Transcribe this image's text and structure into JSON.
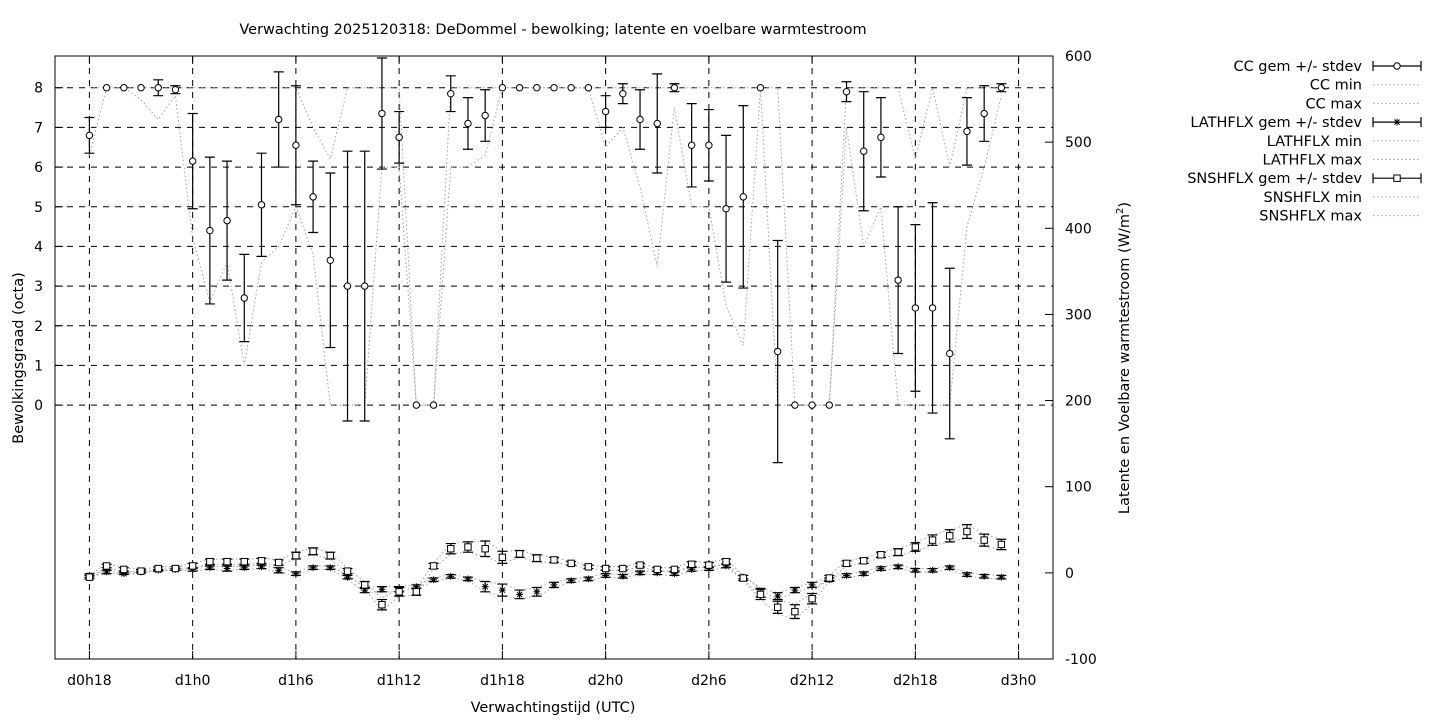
{
  "chart_data": {
    "type": "line",
    "title": "Verwachting 2025120318: DeDommel - bewolking; latente en voelbare warmtestroom",
    "xlabel": "Verwachtingstijd (UTC)",
    "ylabel": "Bewolkingsgraad (octa)",
    "y2label_main": "Latente en Voelbare warmtestroom (W/m",
    "y2label_sup": "2",
    "y2label_end": ")",
    "x_hours": [
      18,
      19,
      20,
      21,
      22,
      23,
      24,
      25,
      26,
      27,
      28,
      29,
      30,
      31,
      32,
      33,
      34,
      35,
      36,
      37,
      38,
      39,
      40,
      41,
      42,
      43,
      44,
      45,
      46,
      47,
      48,
      49,
      50,
      51,
      52,
      53,
      54,
      55,
      56,
      57,
      58,
      59,
      60,
      61,
      62,
      63,
      64,
      65,
      66,
      67,
      68,
      69,
      70,
      71,
      72
    ],
    "xlim": [
      16,
      74
    ],
    "x_ticks": [
      {
        "hour": 18,
        "label": "d0h18"
      },
      {
        "hour": 24,
        "label": "d1h0"
      },
      {
        "hour": 30,
        "label": "d1h6"
      },
      {
        "hour": 36,
        "label": "d1h12"
      },
      {
        "hour": 42,
        "label": "d1h18"
      },
      {
        "hour": 48,
        "label": "d2h0"
      },
      {
        "hour": 54,
        "label": "d2h6"
      },
      {
        "hour": 60,
        "label": "d2h12"
      },
      {
        "hour": 66,
        "label": "d2h18"
      },
      {
        "hour": 72,
        "label": "d3h0"
      }
    ],
    "y_ticks": [
      0,
      1,
      2,
      3,
      4,
      5,
      6,
      7,
      8
    ],
    "y_range_mapped": [
      -6.4,
      8.8
    ],
    "y2_ticks": [
      -100,
      0,
      100,
      200,
      300,
      400,
      500,
      600
    ],
    "y2_range": [
      -100,
      600
    ],
    "grid": true,
    "legend_position": "right-outside",
    "legend": [
      {
        "label": "CC gem +/- stdev",
        "style": "errbar-circle"
      },
      {
        "label": "CC min",
        "style": "dotted"
      },
      {
        "label": "CC max",
        "style": "dotted"
      },
      {
        "label": "LATHFLX gem +/- stdev",
        "style": "errbar-star"
      },
      {
        "label": "LATHFLX min",
        "style": "dotted-dark"
      },
      {
        "label": "LATHFLX max",
        "style": "dotted"
      },
      {
        "label": "SNSHFLX gem +/- stdev",
        "style": "errbar-square"
      },
      {
        "label": "SNSHFLX min",
        "style": "dotted"
      },
      {
        "label": "SNSHFLX max",
        "style": "dotted"
      }
    ],
    "series": [
      {
        "name": "CC gem +/- stdev",
        "axis": "y1",
        "values": [
          6.8,
          8.0,
          8.0,
          8.0,
          8.0,
          7.95,
          6.15,
          4.4,
          4.65,
          2.7,
          5.05,
          7.2,
          6.55,
          5.25,
          3.65,
          3.0,
          3.0,
          7.35,
          6.75,
          0.0,
          0.0,
          7.85,
          7.1,
          7.3,
          8.0,
          8.0,
          8.0,
          8.0,
          8.0,
          8.0,
          7.4,
          7.85,
          7.2,
          7.1,
          8.0,
          6.55,
          6.55,
          4.95,
          5.25,
          8.0,
          1.35,
          0.0,
          0.0,
          0.0,
          7.9,
          6.4,
          6.75,
          3.15,
          2.45,
          2.45,
          1.3,
          6.9,
          7.35,
          8.0,
          null
        ],
        "stdev": [
          0.45,
          0,
          0,
          0,
          0.2,
          0.1,
          1.2,
          1.85,
          1.5,
          1.1,
          1.3,
          1.2,
          1.5,
          0.9,
          2.2,
          3.4,
          3.4,
          1.4,
          0.65,
          0,
          0,
          0.45,
          0.65,
          0.65,
          0,
          0,
          0,
          0,
          0,
          0,
          0.4,
          0.25,
          0.75,
          1.25,
          0.1,
          1.05,
          0.9,
          1.85,
          2.3,
          0,
          2.8,
          0,
          0,
          0,
          0.25,
          1.5,
          1.0,
          1.85,
          2.1,
          2.65,
          2.15,
          0.85,
          0.7,
          0.1,
          null
        ]
      },
      {
        "name": "CC min",
        "axis": "y1",
        "values": [
          6.3,
          8.0,
          8.0,
          7.7,
          7.2,
          7.8,
          4.2,
          2.6,
          3.6,
          1.0,
          3.6,
          4.0,
          5.0,
          3.8,
          0.0,
          0.0,
          0.0,
          6.0,
          6.0,
          0.0,
          0.0,
          6.0,
          6.0,
          6.3,
          8.0,
          8.0,
          8.0,
          8.0,
          8.0,
          8.0,
          6.5,
          7.0,
          5.5,
          3.5,
          7.5,
          5.0,
          5.0,
          2.5,
          1.5,
          8.0,
          0.0,
          0.0,
          0.0,
          0.0,
          7.0,
          4.0,
          5.0,
          0.0,
          0.0,
          0.0,
          0.0,
          4.5,
          6.0,
          7.8,
          null
        ]
      },
      {
        "name": "CC max",
        "axis": "y1",
        "values": [
          8.0,
          8.0,
          8.0,
          8.0,
          8.0,
          8.0,
          8.0,
          8.0,
          8.0,
          8.0,
          8.0,
          8.0,
          8.0,
          7.0,
          6.2,
          8.0,
          8.0,
          8.0,
          8.0,
          0.0,
          0.0,
          8.0,
          8.0,
          8.0,
          8.0,
          8.0,
          8.0,
          8.0,
          8.0,
          8.0,
          8.0,
          8.0,
          8.0,
          8.0,
          8.0,
          8.0,
          8.0,
          8.0,
          8.0,
          8.0,
          8.0,
          0.0,
          0.0,
          0.0,
          8.0,
          8.0,
          8.0,
          8.0,
          6.2,
          8.0,
          6.0,
          8.0,
          8.0,
          8.0,
          null
        ]
      },
      {
        "name": "LATHFLX gem +/- stdev",
        "axis": "y2",
        "values": [
          -3,
          1,
          -1,
          1,
          3,
          4,
          4,
          6,
          5,
          6,
          7,
          3,
          -1,
          6,
          6,
          -5,
          -20,
          -19,
          -19,
          -16,
          -8,
          -4,
          -7,
          -16,
          -20,
          -25,
          -22,
          -14,
          -9,
          -7,
          -3,
          -4,
          0,
          0,
          -1,
          4,
          5,
          8,
          -5,
          -23,
          -27,
          -20,
          -14,
          -8,
          -3,
          -1,
          5,
          7,
          3,
          3,
          6,
          -2,
          -4,
          -5,
          null
        ],
        "stdev": [
          2,
          2,
          1,
          1,
          1,
          1,
          2,
          2,
          3,
          2,
          2,
          3,
          2,
          2,
          2,
          2,
          3,
          3,
          3,
          2,
          2,
          2,
          2,
          6,
          7,
          5,
          5,
          3,
          2,
          2,
          2,
          2,
          2,
          2,
          2,
          2,
          2,
          2,
          2,
          5,
          4,
          3,
          3,
          2,
          2,
          2,
          2,
          2,
          2,
          2,
          2,
          2,
          2,
          2,
          null
        ]
      },
      {
        "name": "LATHFLX min",
        "axis": "y2",
        "values": [
          -5,
          0,
          -2,
          0,
          2,
          3,
          2,
          4,
          3,
          4,
          5,
          1,
          -3,
          4,
          4,
          -7,
          -23,
          -22,
          -22,
          -18,
          -10,
          -6,
          -9,
          -22,
          -27,
          -30,
          -27,
          -17,
          -11,
          -9,
          -5,
          -6,
          -2,
          -2,
          -3,
          2,
          3,
          6,
          -7,
          -28,
          -31,
          -23,
          -17,
          -10,
          -5,
          -3,
          3,
          5,
          1,
          1,
          4,
          -4,
          -6,
          -7,
          null
        ]
      },
      {
        "name": "LATHFLX max",
        "axis": "y2",
        "values": [
          -1,
          2,
          0,
          2,
          4,
          5,
          6,
          8,
          7,
          8,
          9,
          5,
          1,
          8,
          8,
          -3,
          -17,
          -16,
          -16,
          -14,
          -6,
          -2,
          -5,
          -10,
          -13,
          -20,
          -17,
          -11,
          -7,
          -5,
          -1,
          -2,
          2,
          2,
          1,
          6,
          7,
          10,
          -3,
          -18,
          -23,
          -17,
          -11,
          -6,
          -1,
          1,
          7,
          9,
          5,
          5,
          8,
          0,
          -2,
          -3,
          null
        ]
      },
      {
        "name": "SNSHFLX gem +/- stdev",
        "axis": "y2",
        "values": [
          -5,
          8,
          4,
          2,
          5,
          5,
          8,
          13,
          13,
          13,
          14,
          12,
          20,
          25,
          20,
          2,
          -14,
          -37,
          -22,
          -22,
          8,
          28,
          30,
          28,
          18,
          22,
          17,
          15,
          11,
          7,
          5,
          5,
          9,
          4,
          4,
          10,
          9,
          13,
          -6,
          -25,
          -40,
          -45,
          -30,
          -6,
          11,
          14,
          21,
          24,
          30,
          38,
          43,
          48,
          38,
          33,
          null
        ],
        "stdev": [
          2,
          2,
          2,
          2,
          2,
          2,
          3,
          3,
          3,
          3,
          3,
          3,
          4,
          4,
          4,
          3,
          4,
          6,
          5,
          4,
          3,
          6,
          6,
          9,
          7,
          4,
          4,
          3,
          2,
          2,
          2,
          2,
          2,
          2,
          2,
          3,
          3,
          3,
          3,
          6,
          7,
          8,
          6,
          3,
          3,
          3,
          3,
          4,
          5,
          6,
          7,
          8,
          7,
          6,
          null
        ]
      },
      {
        "name": "SNSHFLX min",
        "axis": "y2",
        "values": [
          -7,
          5,
          2,
          0,
          3,
          3,
          5,
          10,
          10,
          10,
          11,
          9,
          16,
          21,
          16,
          -1,
          -18,
          -44,
          -27,
          -26,
          5,
          22,
          24,
          19,
          11,
          18,
          13,
          12,
          9,
          5,
          3,
          3,
          7,
          2,
          2,
          7,
          6,
          10,
          -9,
          -31,
          -48,
          -54,
          -36,
          -9,
          8,
          11,
          18,
          20,
          25,
          32,
          36,
          40,
          31,
          27,
          null
        ]
      },
      {
        "name": "SNSHFLX max",
        "axis": "y2",
        "values": [
          -3,
          11,
          6,
          4,
          7,
          7,
          11,
          16,
          16,
          16,
          17,
          15,
          24,
          29,
          24,
          5,
          -10,
          -30,
          -17,
          -18,
          11,
          34,
          36,
          37,
          25,
          26,
          21,
          18,
          13,
          9,
          7,
          7,
          11,
          6,
          6,
          13,
          12,
          16,
          -3,
          -19,
          -32,
          -36,
          -24,
          -3,
          14,
          17,
          24,
          28,
          35,
          44,
          50,
          56,
          45,
          39,
          null
        ]
      }
    ]
  }
}
